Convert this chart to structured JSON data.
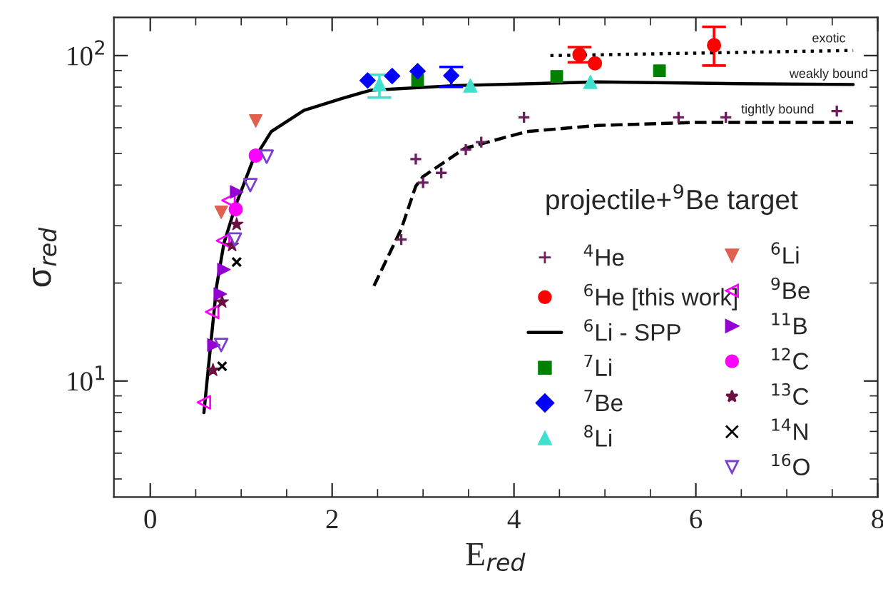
{
  "chart_data": {
    "type": "scatter",
    "xlabel": "E$_{red}$",
    "ylabel": "σ$_{red}$",
    "legend_title": "projectile+$^{9}$Be target",
    "xlim": [
      -0.4,
      8
    ],
    "ylim": [
      4.4,
      131
    ],
    "xticks": [
      0,
      2,
      4,
      6,
      8
    ],
    "yticks": [
      {
        "value": 10,
        "label": "10$^{1}$"
      },
      {
        "value": 100,
        "label": "10$^{2}$"
      }
    ],
    "log": "y",
    "grid": false,
    "legend": "right",
    "annotations": [
      "exotic",
      "weakly bound",
      "tightly bound"
    ],
    "series": [
      {
        "name": "$^{4}$He",
        "color": "#6b1f5e",
        "marker": "plus",
        "x": [
          2.76,
          2.92,
          3.0,
          3.2,
          3.47,
          3.64,
          4.11,
          5.81,
          6.33,
          7.55
        ],
        "values": [
          27.2,
          48.1,
          40.7,
          43.6,
          51.4,
          54.2,
          64.6,
          64.6,
          64.6,
          67.5
        ]
      },
      {
        "name": "$^{6}$He [this work]",
        "color": "#ff0000",
        "marker": "circle",
        "x": [
          4.72,
          4.89,
          6.2
        ],
        "values": [
          100.6,
          94.7,
          107.6
        ],
        "errors": [
          [
            95.4,
            106.2
          ],
          null,
          [
            93.2,
            122.6
          ]
        ]
      },
      {
        "name": "$^{6}$Li - SPP",
        "type": "line",
        "color": "#000000",
        "line_style": "solid",
        "x": [
          0.59,
          0.65,
          0.73,
          0.81,
          0.94,
          1.12,
          1.33,
          1.69,
          2.11,
          2.42,
          3.36,
          4.92,
          6.48,
          7.73
        ],
        "values": [
          8.0,
          11.8,
          19.6,
          26.5,
          34.7,
          47,
          58.4,
          67.9,
          73.9,
          78.2,
          80.9,
          83.0,
          82.0,
          81.5
        ]
      },
      {
        "name": "$^{7}$Li",
        "color": "#008000",
        "marker": "square",
        "x": [
          2.94,
          4.47,
          5.6
        ],
        "values": [
          83.9,
          86.3,
          89.8
        ]
      },
      {
        "name": "$^{7}$Be",
        "color": "#0000ff",
        "marker": "diamond",
        "x": [
          2.39,
          2.66,
          2.94,
          3.31
        ],
        "values": [
          83.9,
          86.5,
          89.5,
          86.8
        ],
        "errors": [
          null,
          null,
          null,
          [
            80.1,
            92.3
          ]
        ]
      },
      {
        "name": "$^{8}$Li",
        "color": "#40e0d0",
        "marker": "triangle",
        "x": [
          2.52,
          3.52,
          4.84
        ],
        "values": [
          81.7,
          80.9,
          83.0
        ],
        "errors": [
          [
            74.3,
            87.3
          ],
          null,
          null
        ]
      },
      {
        "name": "$^{6}$Li",
        "color": "#e06050",
        "marker": "triangle_down",
        "x": [
          1.16,
          0.78
        ],
        "values": [
          63,
          33
        ]
      },
      {
        "name": "$^{9}$Be",
        "color": "#ff00ff",
        "marker": "triangle_left_open",
        "x": [
          0.86,
          0.8,
          0.68,
          0.59
        ],
        "values": [
          35.9,
          27,
          16.3,
          8.6
        ]
      },
      {
        "name": "$^{11}$B",
        "color": "#9400d3",
        "marker": "triangle_right",
        "x": [
          0.95,
          0.81,
          0.77,
          0.7
        ],
        "values": [
          38.1,
          22,
          18.5,
          12.9
        ]
      },
      {
        "name": "$^{12}$C",
        "color": "#ff00ff",
        "marker": "circle",
        "x": [
          1.16,
          0.94
        ],
        "values": [
          49.3,
          33.7
        ]
      },
      {
        "name": "$^{13}$C",
        "color": "#6b1040",
        "marker": "star",
        "x": [
          0.95,
          0.9,
          0.79,
          0.69
        ],
        "values": [
          30.3,
          26.1,
          17.5,
          10.8
        ]
      },
      {
        "name": "$^{14}$N",
        "color": "#000000",
        "marker": "cross",
        "x": [
          0.95,
          0.79
        ],
        "values": [
          23.2,
          11.1
        ]
      },
      {
        "name": "$^{16}$O",
        "color": "#7b3fd0",
        "marker": "triangle_down_open",
        "x": [
          1.28,
          1.1,
          0.93,
          0.78
        ],
        "values": [
          48.9,
          40,
          27.2,
          12.9
        ]
      },
      {
        "type": "line",
        "color": "#000000",
        "line_style": "dashed",
        "x": [
          2.46,
          2.76,
          2.92,
          3.0,
          3.46,
          4.14,
          4.92,
          5.96,
          7.73
        ],
        "values": [
          19.6,
          29.3,
          39.7,
          42.5,
          51.9,
          58.4,
          61,
          62.3,
          62.3
        ]
      },
      {
        "type": "line",
        "color": "#000000",
        "line_style": "dotted",
        "x": [
          4.4,
          7.73
        ],
        "values": [
          100,
          103.7
        ]
      }
    ]
  }
}
